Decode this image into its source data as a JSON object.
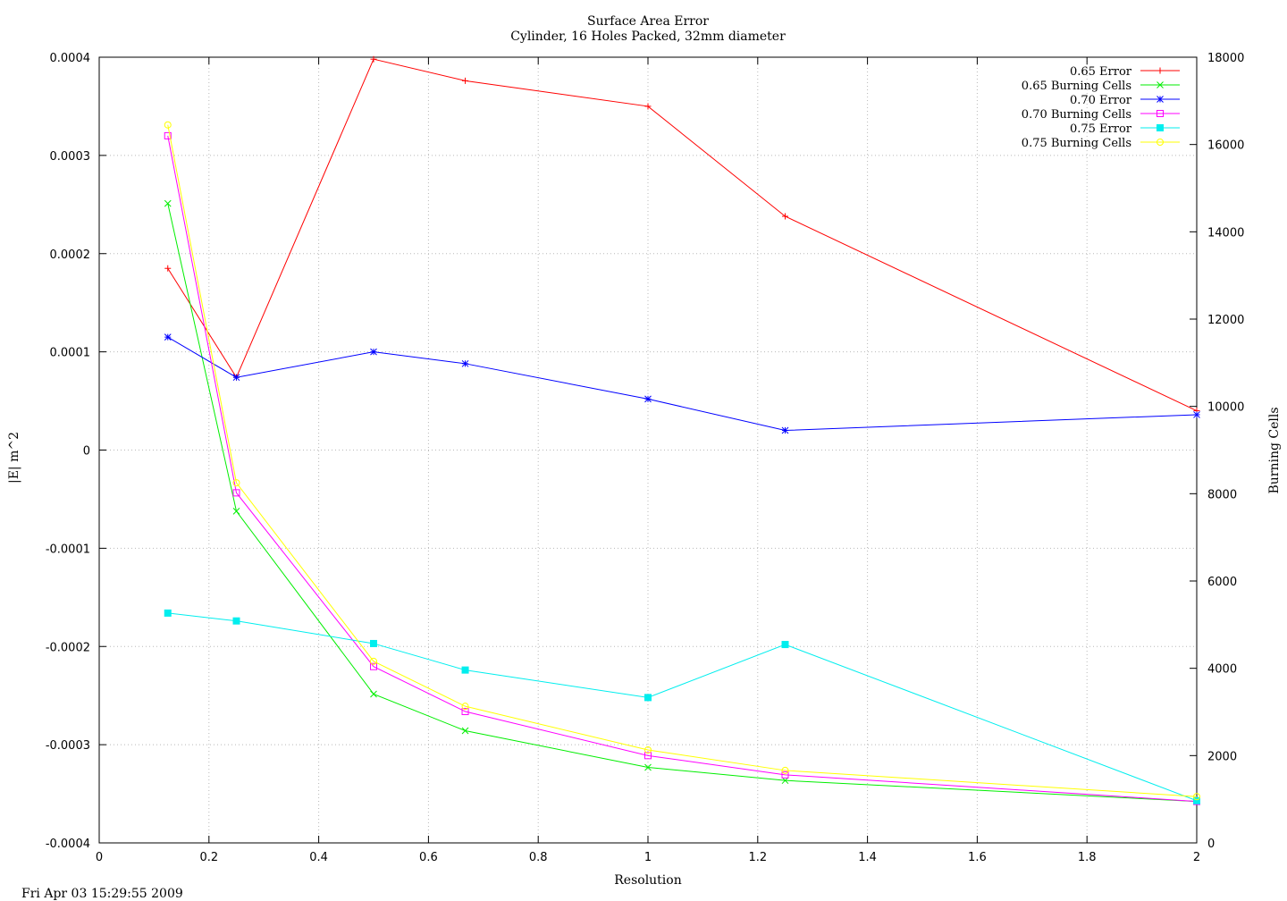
{
  "chart_data": {
    "type": "line",
    "title": "Surface Area Error",
    "subtitle": "Cylinder, 16 Holes Packed, 32mm diameter",
    "xlabel": "Resolution",
    "ylabel": "|E| m^2",
    "y2label": "Burning Cells",
    "xlim": [
      0,
      2
    ],
    "ylim": [
      -0.0004,
      0.0004
    ],
    "y2lim": [
      0,
      18000
    ],
    "x_ticks": [
      "0",
      "0.2",
      "0.4",
      "0.6",
      "0.8",
      "1",
      "1.2",
      "1.4",
      "1.6",
      "1.8",
      "2"
    ],
    "y_ticks": [
      "-0.0004",
      "-0.0003",
      "-0.0002",
      "-0.0001",
      "0",
      "0.0001",
      "0.0002",
      "0.0003",
      "0.0004"
    ],
    "y2_ticks": [
      "0",
      "2000",
      "4000",
      "6000",
      "8000",
      "10000",
      "12000",
      "14000",
      "16000",
      "18000"
    ],
    "grid": true,
    "legend_position": "top-right",
    "x": [
      0.125,
      0.25,
      0.5,
      0.667,
      1,
      1.25,
      2
    ],
    "series": [
      {
        "name": "0.65 Error",
        "axis": "y",
        "color": "#ff0000",
        "marker": "plus",
        "values": [
          0.000185,
          7.4e-05,
          0.000398,
          0.000376,
          0.00035,
          0.000238,
          4e-05
        ]
      },
      {
        "name": "0.65 Burning Cells",
        "axis": "y2",
        "color": "#00ee00",
        "marker": "cross",
        "values": [
          14650,
          7600,
          3410,
          2570,
          1730,
          1430,
          950
        ]
      },
      {
        "name": "0.70 Error",
        "axis": "y",
        "color": "#0000ff",
        "marker": "star",
        "values": [
          0.000115,
          7.4e-05,
          0.0001,
          8.8e-05,
          5.2e-05,
          2e-05,
          3.6e-05
        ]
      },
      {
        "name": "0.70 Burning Cells",
        "axis": "y2",
        "color": "#ff00ff",
        "marker": "open-square",
        "values": [
          16200,
          8020,
          4040,
          3010,
          2000,
          1560,
          950
        ]
      },
      {
        "name": "0.75 Error",
        "axis": "y",
        "color": "#00eeee",
        "marker": "filled-square",
        "values": [
          -0.000166,
          -0.000174,
          -0.000197,
          -0.000224,
          -0.000252,
          -0.000198,
          -0.000357
        ]
      },
      {
        "name": "0.75 Burning Cells",
        "axis": "y2",
        "color": "#ffff00",
        "marker": "open-circle",
        "values": [
          16450,
          8250,
          4160,
          3130,
          2130,
          1660,
          1060
        ]
      }
    ]
  },
  "footer": {
    "timestamp": "Fri Apr 03 15:29:55 2009"
  },
  "colors": {
    "ylabel": "#ff0000",
    "y2label": "#00cc00"
  }
}
